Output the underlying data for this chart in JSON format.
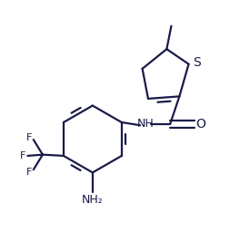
{
  "bg_color": "#ffffff",
  "line_color": "#1a1a4a",
  "text_color": "#1a1a4a",
  "line_width": 1.6,
  "font_size": 9,
  "figsize": [
    2.75,
    2.56
  ],
  "dpi": 100,
  "xlim": [
    0.0,
    1.0
  ],
  "ylim": [
    0.05,
    1.05
  ]
}
